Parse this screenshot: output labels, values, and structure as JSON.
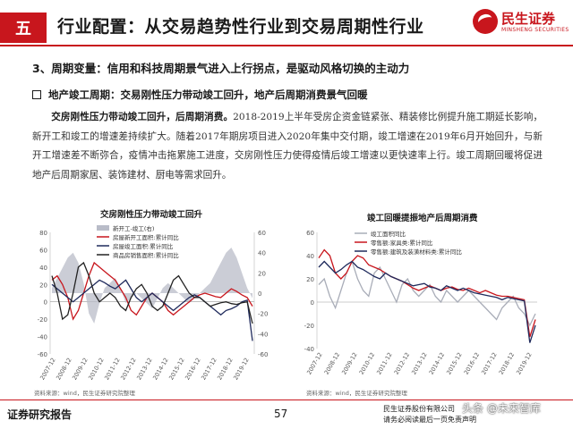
{
  "header": {
    "section_number": "五",
    "title": "行业配置：从交易趋势性行业到交易周期性行业",
    "logo_cn": "民生证券",
    "logo_en": "MINSHENG SECURITIES"
  },
  "section_heading": "3、周期变量：信用和科技周期景气进入上行拐点，是驱动风格切换的主动力",
  "sub_heading": "地产竣工周期：交易刚性压力带动竣工回升，地产后周期消费景气回暖",
  "paragraph": {
    "lead": "交房刚性压力带动竣工回升，后周期消费。",
    "body": "2018-2019上半年受房企资金链紧张、精装修比例提升施工期延长影响，新开工和竣工的增速差持续扩大。随着2017年期房项目进入2020年集中交付期，竣工增速在2019年6月开始回升，与新开工增速差不断弥合，疫情冲击拖累施工进度，交房刚性压力使得疫情后竣工增速以更快速率上行。竣工周期回暖将促进地产后周期家居、装饰建材、厨电等需求回升。"
  },
  "chart_data": [
    {
      "type": "line",
      "title": "交房刚性压力带动竣工回升",
      "source": "资料来源：wind，民生证券研究院整理",
      "x_labels": [
        "2007-12",
        "2008-12",
        "2009-12",
        "2010-12",
        "2011-12",
        "2012-12",
        "2013-12",
        "2014-12",
        "2015-12",
        "2016-12",
        "2017-12",
        "2018-12",
        "2019-12"
      ],
      "ylim_left": [
        -60,
        80
      ],
      "ylim_right": [
        -60,
        60
      ],
      "left_ticks": [
        "80",
        "60",
        "40",
        "20",
        "0",
        "-20",
        "-40",
        "-60"
      ],
      "right_ticks": [
        "60",
        "40",
        "20",
        "0",
        "-20",
        "-40",
        "-60"
      ],
      "series": [
        {
          "name": "新开工-竣工(右)",
          "axis": "right",
          "style": "area",
          "color": "#b9bcc8",
          "values": [
            5,
            15,
            25,
            35,
            40,
            30,
            10,
            -20,
            -30,
            -10,
            5,
            10,
            15,
            5,
            -10,
            -5,
            0,
            -5,
            -10,
            -15,
            -5,
            5,
            10,
            5,
            0,
            -5,
            -10,
            -5,
            0,
            5,
            10,
            20,
            30,
            40,
            45,
            35,
            20,
            5,
            -5
          ]
        },
        {
          "name": "房屋新开工面积:累计同比",
          "axis": "left",
          "style": "line",
          "color": "#c8161d",
          "values": [
            25,
            30,
            20,
            5,
            -20,
            -10,
            10,
            30,
            45,
            40,
            35,
            30,
            25,
            15,
            5,
            -10,
            -15,
            -5,
            5,
            10,
            5,
            0,
            -10,
            -15,
            -10,
            -5,
            0,
            5,
            8,
            10,
            8,
            6,
            5,
            10,
            15,
            12,
            8,
            5,
            -5
          ]
        },
        {
          "name": "房屋竣工面积:累计同比",
          "axis": "left",
          "style": "line",
          "color": "#1f2a5c",
          "values": [
            20,
            15,
            10,
            5,
            0,
            5,
            10,
            15,
            20,
            25,
            22,
            18,
            15,
            20,
            25,
            15,
            5,
            0,
            5,
            10,
            5,
            0,
            -5,
            -10,
            -5,
            0,
            5,
            8,
            5,
            0,
            -5,
            -10,
            -15,
            -10,
            -8,
            -5,
            0,
            2,
            -45
          ]
        },
        {
          "name": "商品房销售面积:累计同比",
          "axis": "left",
          "style": "line",
          "color": "#222222",
          "values": [
            30,
            10,
            -20,
            -15,
            10,
            40,
            45,
            30,
            10,
            0,
            5,
            10,
            5,
            -5,
            -10,
            5,
            15,
            20,
            10,
            -5,
            -10,
            -5,
            10,
            25,
            30,
            20,
            10,
            5,
            5,
            0,
            -5,
            -3,
            -1,
            0,
            -2,
            -3,
            -1,
            0,
            -25
          ]
        }
      ]
    },
    {
      "type": "line",
      "title": "竣工回暖提振地产后周期消费",
      "source": "资料来源：wind，民生证券研究院整理",
      "x_labels": [
        "2007-12",
        "2008-12",
        "2009-12",
        "2010-12",
        "2011-12",
        "2012-12",
        "2013-12",
        "2014-12",
        "2015-12",
        "2016-12",
        "2017-12",
        "2018-12",
        "2019-12"
      ],
      "ylim": [
        -40,
        60
      ],
      "ticks": [
        "60",
        "40",
        "20",
        "0",
        "-20",
        "-40"
      ],
      "series": [
        {
          "name": "竣工面积同比",
          "color": "#a9adb8",
          "values": [
            15,
            20,
            5,
            -5,
            10,
            25,
            35,
            20,
            10,
            5,
            25,
            30,
            20,
            10,
            0,
            15,
            20,
            10,
            5,
            10,
            15,
            5,
            0,
            10,
            5,
            0,
            5,
            10,
            5,
            0,
            -5,
            -10,
            -15,
            -5,
            0,
            5,
            -5,
            -10,
            -20,
            -10
          ]
        },
        {
          "name": "零售额:家具类:累计同比",
          "color": "#c8161d",
          "values": [
            38,
            45,
            40,
            25,
            20,
            25,
            35,
            40,
            38,
            32,
            30,
            28,
            25,
            22,
            20,
            18,
            15,
            12,
            10,
            12,
            14,
            12,
            10,
            12,
            13,
            11,
            10,
            12,
            10,
            8,
            10,
            8,
            6,
            5,
            5,
            4,
            3,
            2,
            -30,
            -15
          ]
        },
        {
          "name": "零售额:建筑及装潢材料类:累计同比",
          "color": "#1f2a5c",
          "values": [
            30,
            35,
            30,
            25,
            28,
            32,
            35,
            30,
            28,
            25,
            22,
            20,
            25,
            22,
            20,
            18,
            16,
            14,
            15,
            16,
            13,
            12,
            10,
            14,
            12,
            10,
            12,
            10,
            8,
            7,
            6,
            5,
            4,
            2,
            4,
            3,
            2,
            1,
            -35,
            -20
          ]
        }
      ]
    }
  ],
  "footer": {
    "left": "证券研究报告",
    "page": "57",
    "right_line1": "民生证券股份有限公司",
    "right_line2": "请务必阅读最后一页免责声明",
    "watermark": "头条 @未来智库"
  }
}
